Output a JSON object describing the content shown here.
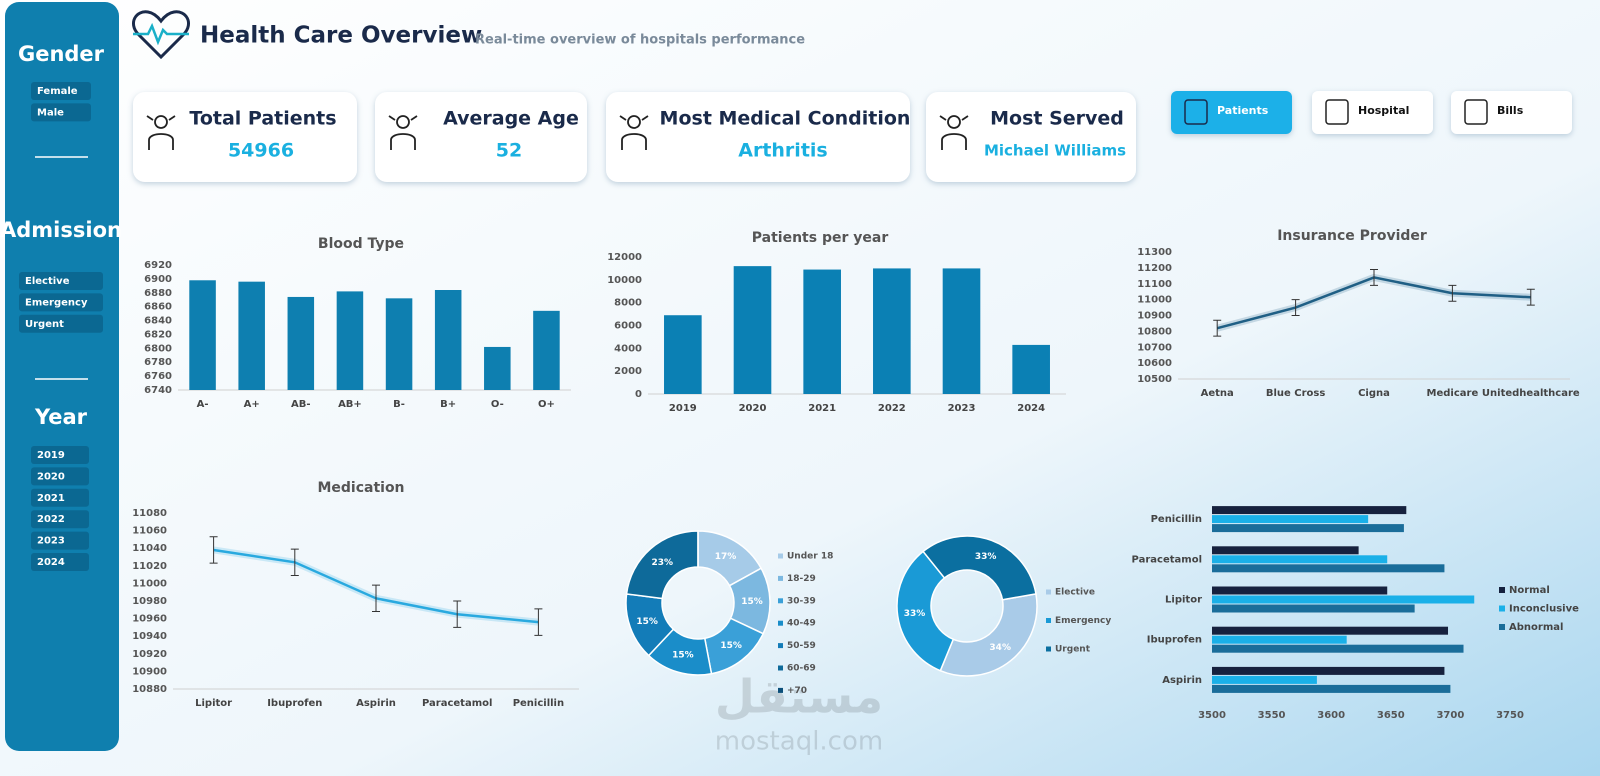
{
  "header": {
    "title": "Health Care Overview",
    "subtitle": "Real-time overview of hospitals performance"
  },
  "filters": [
    {
      "title": "Gender",
      "items": [
        "Female",
        "Male"
      ]
    },
    {
      "title": "Admission",
      "items": [
        "Elective",
        "Emergency",
        "Urgent"
      ]
    },
    {
      "title": "Year",
      "items": [
        "2019",
        "2020",
        "2021",
        "2022",
        "2023",
        "2024"
      ]
    }
  ],
  "kpis": [
    {
      "label": "Total Patients",
      "value": 54966
    },
    {
      "label": "Average Age",
      "value": 52
    },
    {
      "label": "Most Medical Condition",
      "value": "Arthritis"
    },
    {
      "label": "Most Served",
      "value": "Michael Williams"
    }
  ],
  "buttons": [
    "Patients",
    "Hospital",
    "Bills"
  ],
  "watermark": [
    "مستقل",
    "mostaql.com"
  ],
  "chart_data": [
    {
      "type": "bar",
      "title": "Blood Type",
      "categories": [
        "A-",
        "A+",
        "AB-",
        "AB+",
        "B-",
        "B+",
        "O-",
        "O+"
      ],
      "values": [
        6898,
        6896,
        6874,
        6882,
        6872,
        6884,
        6802,
        6854
      ],
      "color": "#0e7fb0",
      "ylim": [
        6740,
        6920
      ],
      "yticks": [
        6740,
        6760,
        6780,
        6800,
        6820,
        6840,
        6860,
        6880,
        6900,
        6920
      ]
    },
    {
      "type": "bar",
      "title": "Patients per year",
      "categories": [
        "2019",
        "2020",
        "2021",
        "2022",
        "2023",
        "2024"
      ],
      "values": [
        6900,
        11200,
        10900,
        11000,
        11000,
        4300
      ],
      "color": "#0b80b4",
      "ylim": [
        0,
        12000
      ],
      "yticks": [
        0,
        2000,
        4000,
        6000,
        8000,
        10000,
        12000
      ]
    },
    {
      "type": "line",
      "title": "Insurance Provider",
      "categories": [
        "Aetna",
        "Blue Cross",
        "Cigna",
        "Medicare",
        "Unitedhealthcare"
      ],
      "values": [
        10820,
        10950,
        11140,
        11040,
        11015
      ],
      "errors": [
        50,
        50,
        50,
        50,
        50
      ],
      "color": "#1f5f85",
      "ylim": [
        10500,
        11300
      ],
      "yticks": [
        10500,
        10600,
        10700,
        10800,
        10900,
        11000,
        11100,
        11200,
        11300
      ]
    },
    {
      "type": "line",
      "title": "Medication",
      "categories": [
        "Lipitor",
        "Ibuprofen",
        "Aspirin",
        "Paracetamol",
        "Penicillin"
      ],
      "values": [
        11038,
        11024,
        10983,
        10965,
        10956
      ],
      "errors": [
        15,
        15,
        15,
        15,
        15
      ],
      "color": "#29a9df",
      "ylim": [
        10880,
        11080
      ],
      "yticks": [
        10880,
        10900,
        10920,
        10940,
        10960,
        10980,
        11000,
        11020,
        11040,
        11060,
        11080
      ]
    },
    {
      "type": "donut",
      "categories": [
        "Under 18",
        "18-29",
        "30-39",
        "40-49",
        "50-59",
        "60-69",
        "+70"
      ],
      "values": [
        17,
        15,
        15,
        15,
        15,
        23,
        0
      ],
      "value_labels": [
        "17%",
        "15%",
        "15%",
        "15%",
        "15%",
        "23%",
        null
      ],
      "colors": [
        "#a6cbe8",
        "#7cb8e0",
        "#3aa0d8",
        "#1a8dc9",
        "#137cb8",
        "#0e6a9a",
        "#0b4f7a"
      ]
    },
    {
      "type": "donut",
      "categories": [
        "Elective",
        "Emergency",
        "Urgent"
      ],
      "values": [
        34,
        33,
        33
      ],
      "value_labels": [
        "34%",
        "33%",
        "33%"
      ],
      "colors": [
        "#a9cbe8",
        "#1a9ad6",
        "#0b6fa0"
      ]
    },
    {
      "type": "hbar",
      "categories": [
        "Penicillin",
        "Paracetamol",
        "Lipitor",
        "Ibuprofen",
        "Aspirin"
      ],
      "series": [
        {
          "name": "Normal",
          "color": "#16213e",
          "values": [
            3663,
            3623,
            3647,
            3698,
            3695
          ]
        },
        {
          "name": "Inconclusive",
          "color": "#1ab0e8",
          "values": [
            3631,
            3647,
            3720,
            3613,
            3588
          ]
        },
        {
          "name": "Abnormal",
          "color": "#1a6d9a",
          "values": [
            3661,
            3695,
            3670,
            3711,
            3700
          ]
        }
      ],
      "xlim": [
        3500,
        3750
      ],
      "xticks": [
        3500,
        3550,
        3600,
        3650,
        3700,
        3750
      ]
    }
  ]
}
